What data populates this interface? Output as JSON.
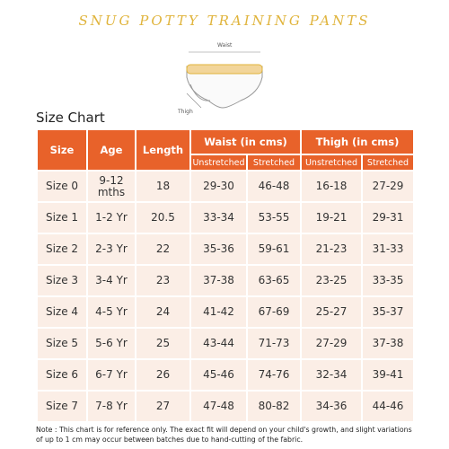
{
  "header": {
    "title": "SNUG POTTY TRAINING PANTS"
  },
  "diagram": {
    "waist_label": "Waist",
    "thigh_label": "Thigh"
  },
  "section_title": "Size Chart",
  "table": {
    "headers": [
      "Size",
      "Age",
      "Length"
    ],
    "groups": [
      {
        "label": "Waist  (in cms)",
        "sub": [
          "Unstretched",
          "Stretched"
        ]
      },
      {
        "label": "Thigh  (in cms)",
        "sub": [
          "Unstretched",
          "Stretched"
        ]
      }
    ],
    "rows": [
      [
        "Size 0",
        "9-12 mths",
        "18",
        "29-30",
        "46-48",
        "16-18",
        "27-29"
      ],
      [
        "Size 1",
        "1-2 Yr",
        "20.5",
        "33-34",
        "53-55",
        "19-21",
        "29-31"
      ],
      [
        "Size 2",
        "2-3 Yr",
        "22",
        "35-36",
        "59-61",
        "21-23",
        "31-33"
      ],
      [
        "Size 3",
        "3-4 Yr",
        "23",
        "37-38",
        "63-65",
        "23-25",
        "33-35"
      ],
      [
        "Size 4",
        "4-5 Yr",
        "24",
        "41-42",
        "67-69",
        "25-27",
        "35-37"
      ],
      [
        "Size 5",
        "5-6 Yr",
        "25",
        "43-44",
        "71-73",
        "27-29",
        "37-38"
      ],
      [
        "Size 6",
        "6-7 Yr",
        "26",
        "45-46",
        "74-76",
        "32-34",
        "39-41"
      ],
      [
        "Size 7",
        "7-8 Yr",
        "27",
        "47-48",
        "80-82",
        "34-36",
        "44-46"
      ]
    ]
  },
  "note": "Note : This chart is for reference only. The exact fit will depend on your child's growth, and slight variations of up to 1 cm may occur between batches due to hand-cutting of the fabric."
}
